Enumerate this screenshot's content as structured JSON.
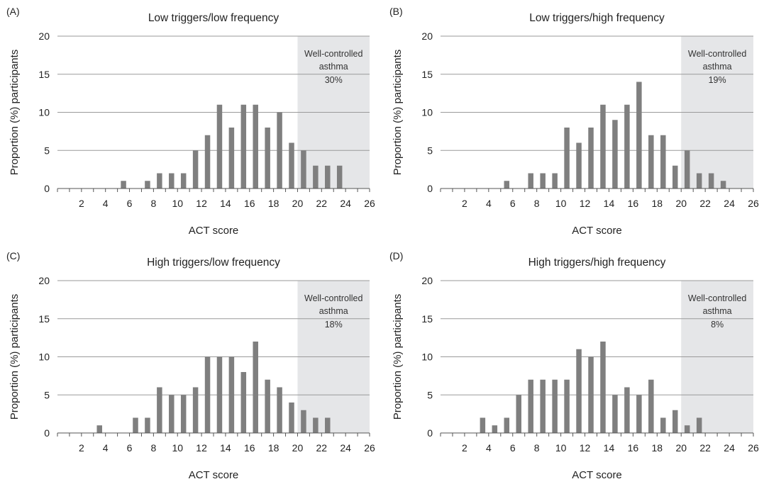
{
  "chart_data": [
    {
      "type": "bar",
      "panel": "(A)",
      "title": "Low triggers/low frequency",
      "xlabel": "ACT score",
      "ylabel": "Proportion (%) participants",
      "xlim": [
        0,
        26
      ],
      "ylim": [
        0,
        20
      ],
      "xticks": [
        "2",
        "4",
        "6",
        "8",
        "10",
        "12",
        "14",
        "16",
        "18",
        "20",
        "22",
        "24",
        "26"
      ],
      "yticks": [
        "0",
        "5",
        "10",
        "15",
        "20"
      ],
      "grid": true,
      "shaded_region": {
        "from": 20,
        "to": 26,
        "label_lines": [
          "Well-controlled",
          "asthma"
        ],
        "percent": "30%"
      },
      "x": [
        5,
        6,
        7,
        8,
        9,
        10,
        11,
        12,
        13,
        14,
        15,
        16,
        17,
        18,
        19,
        20,
        21,
        22,
        23,
        24,
        25
      ],
      "values": [
        0,
        1,
        0,
        1,
        2,
        2,
        2,
        5,
        7,
        11,
        8,
        11,
        11,
        8,
        10,
        6,
        5,
        3,
        3,
        3,
        0
      ]
    },
    {
      "type": "bar",
      "panel": "(B)",
      "title": "Low triggers/high frequency",
      "xlabel": "ACT score",
      "ylabel": "Proportion (%) participants",
      "xlim": [
        0,
        26
      ],
      "ylim": [
        0,
        20
      ],
      "xticks": [
        "2",
        "4",
        "6",
        "8",
        "10",
        "12",
        "14",
        "16",
        "18",
        "20",
        "22",
        "24",
        "26"
      ],
      "yticks": [
        "0",
        "5",
        "10",
        "15",
        "20"
      ],
      "grid": true,
      "shaded_region": {
        "from": 20,
        "to": 26,
        "label_lines": [
          "Well-controlled",
          "asthma"
        ],
        "percent": "19%"
      },
      "x": [
        5,
        6,
        7,
        8,
        9,
        10,
        11,
        12,
        13,
        14,
        15,
        16,
        17,
        18,
        19,
        20,
        21,
        22,
        23,
        24,
        25
      ],
      "values": [
        0,
        1,
        0,
        2,
        2,
        2,
        8,
        6,
        8,
        11,
        9,
        11,
        14,
        7,
        7,
        3,
        5,
        2,
        2,
        1,
        0
      ]
    },
    {
      "type": "bar",
      "panel": "(C)",
      "title": "High triggers/low frequency",
      "xlabel": "ACT score",
      "ylabel": "Proportion (%) participants",
      "xlim": [
        0,
        26
      ],
      "ylim": [
        0,
        20
      ],
      "xticks": [
        "2",
        "4",
        "6",
        "8",
        "10",
        "12",
        "14",
        "16",
        "18",
        "20",
        "22",
        "24",
        "26"
      ],
      "yticks": [
        "0",
        "5",
        "10",
        "15",
        "20"
      ],
      "grid": true,
      "shaded_region": {
        "from": 20,
        "to": 26,
        "label_lines": [
          "Well-controlled",
          "asthma"
        ],
        "percent": "18%"
      },
      "x": [
        4,
        5,
        6,
        7,
        8,
        9,
        10,
        11,
        12,
        13,
        14,
        15,
        16,
        17,
        18,
        19,
        20,
        21,
        22,
        23,
        24,
        25
      ],
      "values": [
        1,
        0,
        0,
        2,
        2,
        6,
        5,
        5,
        6,
        10,
        10,
        10,
        8,
        12,
        7,
        6,
        4,
        3,
        2,
        2,
        0,
        0
      ]
    },
    {
      "type": "bar",
      "panel": "(D)",
      "title": "High triggers/high frequency",
      "xlabel": "ACT score",
      "ylabel": "Proportion (%) participants",
      "xlim": [
        0,
        26
      ],
      "ylim": [
        0,
        20
      ],
      "xticks": [
        "2",
        "4",
        "6",
        "8",
        "10",
        "12",
        "14",
        "16",
        "18",
        "20",
        "22",
        "24",
        "26"
      ],
      "yticks": [
        "0",
        "5",
        "10",
        "15",
        "20"
      ],
      "grid": true,
      "shaded_region": {
        "from": 20,
        "to": 26,
        "label_lines": [
          "Well-controlled",
          "asthma"
        ],
        "percent": "8%"
      },
      "x": [
        4,
        5,
        6,
        7,
        8,
        9,
        10,
        11,
        12,
        13,
        14,
        15,
        16,
        17,
        18,
        19,
        20,
        21,
        22,
        23,
        24,
        25
      ],
      "values": [
        2,
        1,
        2,
        5,
        7,
        7,
        7,
        7,
        11,
        10,
        12,
        5,
        6,
        5,
        7,
        2,
        3,
        1,
        2,
        0,
        0,
        0
      ]
    }
  ],
  "colors": {
    "bar": "#7f7f7f",
    "shade": "#e5e6e8",
    "grid": "#9a9a9a",
    "axis": "#555555"
  }
}
